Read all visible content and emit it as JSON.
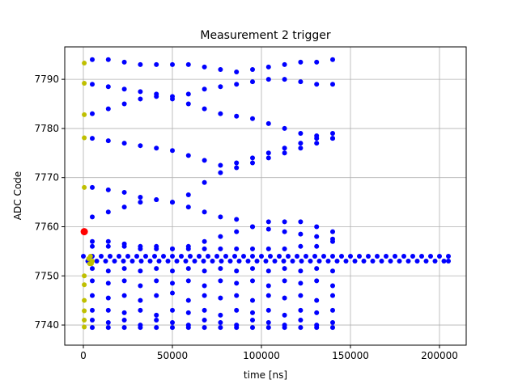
{
  "chart_data": {
    "type": "scatter",
    "title": "Measurement 2 trigger",
    "x_label": "time [ns]",
    "y_label": "ADC Code",
    "xlim": [
      -10455,
      215000
    ],
    "ylim": [
      7735.9,
      7796.6
    ],
    "xticks": [
      0,
      50000,
      100000,
      150000,
      200000
    ],
    "yticks": [
      7740,
      7750,
      7760,
      7770,
      7780,
      7790
    ],
    "grid": true,
    "x": [
      5000,
      14000,
      23000,
      32000,
      41000,
      50000,
      59000,
      68000,
      77000,
      86000,
      95000,
      104000,
      113000,
      122000,
      131000,
      140000
    ],
    "series": [
      {
        "color": "#0000ff",
        "values": [
          7794,
          7794,
          7793.5,
          7793,
          7793,
          7793,
          7793,
          7792.5,
          7792,
          7791.5,
          7792,
          7792.5,
          7793,
          7793.5,
          7793.5,
          7794
        ]
      },
      {
        "color": "#0000ff",
        "values": [
          7789,
          7788.5,
          7788,
          7787.5,
          7787,
          7786.5,
          7787,
          7788,
          7788.5,
          7789,
          7789.5,
          7790,
          7790,
          7789.5,
          7789,
          7789
        ]
      },
      {
        "color": "#0000ff",
        "values": [
          7783,
          7784,
          7785,
          7786,
          7786.5,
          7786,
          7785,
          7784,
          7783,
          7782.5,
          7782,
          7781,
          7780,
          7779,
          7778.5,
          7778
        ]
      },
      {
        "color": "#0000ff",
        "values": [
          7778,
          7777.5,
          7777,
          7776.5,
          7776,
          7775.5,
          7774.5,
          7773.5,
          7772.5,
          7772,
          7773,
          7774,
          7775,
          7776,
          7777,
          7778
        ]
      },
      {
        "color": "#0000ff",
        "values": [
          7768,
          7767.5,
          7767,
          7766,
          7765.5,
          7765,
          7766.5,
          7769,
          7771,
          7773,
          7774,
          7775,
          7776,
          7777,
          7778,
          7779
        ]
      },
      {
        "color": "#0000ff",
        "values": [
          7762,
          7763,
          7764,
          7765,
          7765.5,
          7765,
          7764,
          7763,
          7762,
          7761.5,
          7760,
          7759.5,
          7759,
          7758.5,
          7758,
          7757.5
        ]
      },
      {
        "color": "#0000ff",
        "values": [
          7757,
          7757,
          7756.5,
          7756,
          7756,
          7755.5,
          7756,
          7757,
          7758,
          7759,
          7760,
          7761,
          7761,
          7761,
          7760,
          7759
        ]
      },
      {
        "color": "#0000ff",
        "values": [
          7756,
          7756,
          7756,
          7755.5,
          7755.5,
          7755.5,
          7755.5,
          7755.5,
          7755.5,
          7755.5,
          7755.5,
          7755.5,
          7755.5,
          7756,
          7756,
          7757
        ]
      },
      {
        "color": "#0000ff",
        "values": [
          7751.5,
          7751,
          7751.5,
          7751,
          7751.5,
          7751,
          7751.5,
          7751,
          7751.5,
          7751,
          7751.5,
          7751,
          7751.5,
          7751,
          7751.5,
          7751
        ]
      },
      {
        "color": "#0000ff",
        "values": [
          7749,
          7748.5,
          7749,
          7748,
          7749,
          7748.5,
          7749,
          7748,
          7749,
          7748.5,
          7749,
          7748,
          7749,
          7748.5,
          7749,
          7748
        ]
      },
      {
        "color": "#0000ff",
        "values": [
          7746,
          7745.5,
          7746,
          7745,
          7746,
          7746.5,
          7745,
          7746,
          7745.5,
          7746,
          7745,
          7746,
          7745.5,
          7746,
          7745,
          7746
        ]
      },
      {
        "color": "#0000ff",
        "values": [
          7743,
          7743,
          7742.5,
          7743,
          7742,
          7743,
          7742.5,
          7743,
          7742,
          7743,
          7742.5,
          7743,
          7742,
          7743,
          7742.5,
          7743
        ]
      },
      {
        "color": "#0000ff",
        "values": [
          7741,
          7740.5,
          7741,
          7740,
          7741,
          7740.5,
          7740,
          7741,
          7740.5,
          7740,
          7741,
          7740.5,
          7740,
          7741,
          7740,
          7740.5
        ]
      },
      {
        "color": "#0000ff",
        "values": [
          7739.5,
          7739.5,
          7739.5,
          7739.5,
          7739.5,
          7739.5,
          7739.5,
          7739.5,
          7739.5,
          7739.5,
          7739.5,
          7739.5,
          7739.5,
          7739.5,
          7739.5,
          7739.5
        ]
      },
      {
        "color": "#0000ff",
        "x": [
          0,
          5000,
          10000,
          15000,
          20000,
          25000,
          30000,
          35000,
          40000,
          45000,
          50000,
          55000,
          60000,
          65000,
          70000,
          75000,
          80000,
          85000,
          90000,
          95000,
          100000,
          105000,
          110000,
          115000,
          120000,
          125000,
          130000,
          135000,
          140000,
          145000,
          150000,
          155000,
          160000,
          165000,
          170000,
          175000,
          180000,
          185000,
          190000,
          195000,
          200000,
          205000
        ],
        "values": [
          7754,
          7754,
          7754,
          7754,
          7754,
          7754,
          7754,
          7754,
          7754,
          7754,
          7754,
          7754,
          7754,
          7754,
          7754,
          7754,
          7754,
          7754,
          7754,
          7754,
          7754,
          7754,
          7754,
          7754,
          7754,
          7754,
          7754,
          7754,
          7754,
          7754,
          7754,
          7754,
          7754,
          7754,
          7754,
          7754,
          7754,
          7754,
          7754,
          7754,
          7754,
          7754
        ]
      },
      {
        "color": "#0000ff",
        "x": [
          2500,
          7500,
          12500,
          17500,
          22500,
          27500,
          32500,
          37500,
          42500,
          47500,
          52500,
          57500,
          62500,
          67500,
          72500,
          77500,
          82500,
          87500,
          92500,
          97500,
          102500,
          107500,
          112500,
          117500,
          122500,
          127500,
          132500,
          137500,
          142500,
          147500,
          152500,
          157500,
          162500,
          167500,
          172500,
          177500,
          182500,
          187500,
          192500,
          197500,
          202500,
          205000
        ],
        "values": [
          7753,
          7753,
          7753,
          7753,
          7753,
          7753,
          7753,
          7753,
          7753,
          7753,
          7753,
          7753,
          7753,
          7753,
          7753,
          7753,
          7753,
          7753,
          7753,
          7753,
          7753,
          7753,
          7753,
          7753,
          7753,
          7753,
          7753,
          7753,
          7753,
          7753,
          7753,
          7753,
          7753,
          7753,
          7753,
          7753,
          7753,
          7753,
          7753,
          7753,
          7753,
          7753
        ]
      },
      {
        "color": "#bfbf00",
        "x": [
          500,
          500,
          500,
          500,
          500,
          500,
          500,
          500,
          500,
          500,
          500,
          3000,
          4000,
          5000,
          3500,
          4500
        ],
        "values": [
          7793.3,
          7789.2,
          7782.8,
          7778.1,
          7768,
          7750,
          7748.2,
          7745,
          7742.9,
          7741,
          7739.6,
          7753.5,
          7754,
          7753,
          7752.5,
          7752.5
        ]
      },
      {
        "color": "#ff0000",
        "x": [
          500
        ],
        "values": [
          7759
        ]
      }
    ]
  }
}
